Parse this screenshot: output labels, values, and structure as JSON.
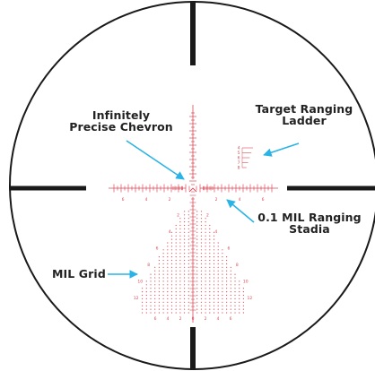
{
  "colors": {
    "reticle": "#1a1a1a",
    "markings": "#d94a57",
    "callout": "#2ab3e6",
    "text": "#222222",
    "background": "#ffffff"
  },
  "callouts": {
    "chevron": {
      "line1": "Infinitely",
      "line2": "Precise Chevron"
    },
    "ladder": {
      "line1": "Target Ranging",
      "line2": "Ladder"
    },
    "stadia": {
      "line1": "0.1 MIL Ranging",
      "line2": "Stadia"
    },
    "grid": {
      "line1": "MIL Grid"
    }
  },
  "markings": {
    "horizontal_numbers": [
      "6",
      "4",
      "2",
      "2",
      "4",
      "6"
    ],
    "grid_side_numbers": [
      "2",
      "4",
      "6",
      "8",
      "10",
      "12",
      "14"
    ],
    "grid_bottom_numbers": [
      "6",
      "4",
      "2",
      "0",
      "2",
      "4",
      "6"
    ],
    "ladder_numbers": [
      "4",
      "5",
      "6",
      "7",
      "8"
    ]
  }
}
